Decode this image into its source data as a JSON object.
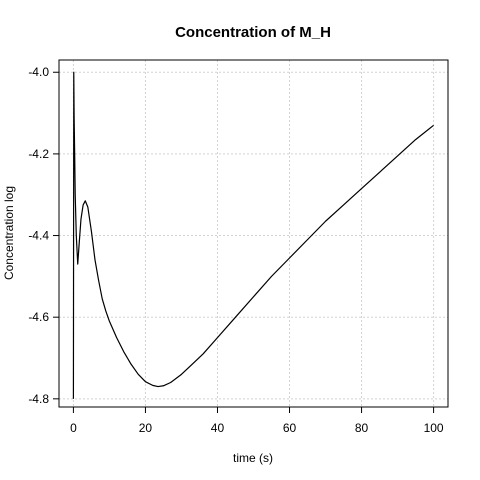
{
  "chart_data": {
    "type": "line",
    "title": "Concentration of M_H",
    "xlabel": "time (s)",
    "ylabel": "Concentration log",
    "xlim": [
      -4,
      104
    ],
    "ylim": [
      -4.82,
      -3.97
    ],
    "x_ticks": [
      0,
      20,
      40,
      60,
      80,
      100
    ],
    "x_tick_labels": [
      "0",
      "20",
      "40",
      "60",
      "80",
      "100"
    ],
    "y_ticks": [
      -4.8,
      -4.6,
      -4.4,
      -4.2,
      -4.0
    ],
    "y_tick_labels": [
      "-4.8",
      "-4.6",
      "-4.4",
      "-4.2",
      "-4.0"
    ],
    "grid": true,
    "line_color": "#000000",
    "grid_color": "#d3d3d3",
    "series": [
      {
        "x": [
          0,
          0.1,
          0.2,
          0.35,
          0.5,
          0.8,
          1.2,
          1.6,
          2.1,
          2.7,
          3.3,
          4.0,
          5.0,
          6.0,
          7.0,
          8.0,
          9.0,
          10,
          12,
          14,
          16,
          18,
          20,
          22,
          23.5,
          25,
          27,
          30,
          33,
          36,
          40,
          45,
          50,
          55,
          60,
          65,
          70,
          75,
          80,
          85,
          90,
          95,
          100
        ],
        "y": [
          -4.8,
          -4.0,
          -4.11,
          -4.2,
          -4.3,
          -4.4,
          -4.47,
          -4.42,
          -4.36,
          -4.325,
          -4.315,
          -4.33,
          -4.39,
          -4.46,
          -4.51,
          -4.555,
          -4.585,
          -4.61,
          -4.65,
          -4.685,
          -4.715,
          -4.74,
          -4.758,
          -4.767,
          -4.77,
          -4.768,
          -4.76,
          -4.74,
          -4.715,
          -4.69,
          -4.65,
          -4.6,
          -4.55,
          -4.5,
          -4.455,
          -4.41,
          -4.365,
          -4.325,
          -4.285,
          -4.245,
          -4.205,
          -4.165,
          -4.13
        ]
      }
    ]
  }
}
